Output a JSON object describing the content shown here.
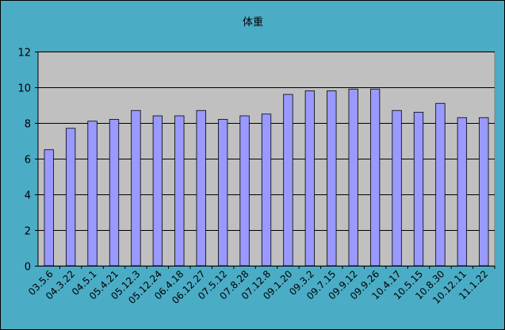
{
  "chart_data": {
    "type": "bar",
    "title": "体重",
    "xlabel": "",
    "ylabel": "",
    "ylim": [
      0,
      12
    ],
    "yticks": [
      0,
      2,
      4,
      6,
      8,
      10,
      12
    ],
    "grid": true,
    "legend": "none",
    "categories": [
      "03.5.6",
      "04.3.22",
      "04.5.1",
      "05.4.21",
      "05.12.3",
      "05.12.24",
      "06.4.18",
      "06.12.27",
      "07.5.12",
      "07.8.28",
      "07.12.8",
      "09.1.20",
      "09.3.2",
      "09.7.15",
      "09.9.12",
      "09.9.26",
      "10.4.17",
      "10.5.15",
      "10.8.30",
      "10.12.11",
      "11.1.22"
    ],
    "values": [
      6.5,
      7.7,
      8.1,
      8.2,
      8.7,
      8.4,
      8.4,
      8.7,
      8.2,
      8.4,
      8.5,
      9.6,
      9.8,
      9.8,
      9.9,
      9.9,
      8.7,
      8.6,
      9.1,
      8.3,
      8.3
    ],
    "colors": {
      "background": "#4bacc6",
      "plot_area": "#c0c0c0",
      "bar_fill": "#9999ff",
      "bar_stroke": "#000000",
      "gridline": "#000000"
    }
  }
}
